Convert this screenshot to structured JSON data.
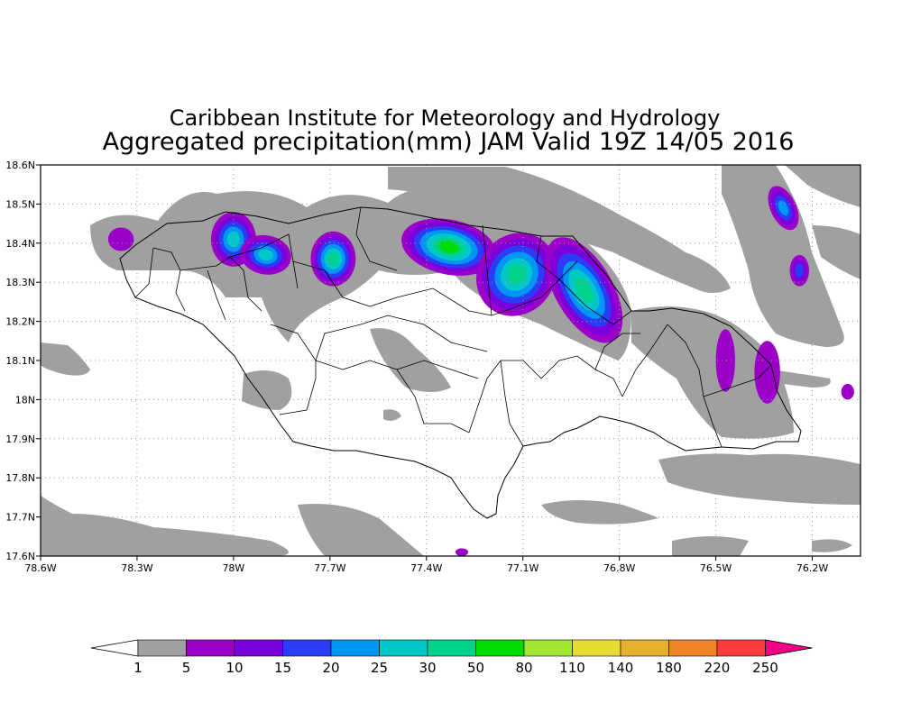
{
  "header": {
    "title_line1": "Caribbean Institute for Meteorology and Hydrology",
    "title_line2": "Aggregated precipitation(mm) JAM Valid 19Z 14/05 2016"
  },
  "chart_data": {
    "type": "heatmap",
    "title": "Caribbean Institute for Meteorology and Hydrology",
    "subtitle": "Aggregated precipitation(mm) JAM Valid 19Z 14/05 2016",
    "x_range": [
      -78.6,
      -76.05
    ],
    "y_range": [
      17.6,
      18.6
    ],
    "x_ticks": [
      {
        "value": -78.6,
        "label": "78.6W"
      },
      {
        "value": -78.3,
        "label": "78.3W"
      },
      {
        "value": -78.0,
        "label": "78W"
      },
      {
        "value": -77.7,
        "label": "77.7W"
      },
      {
        "value": -77.4,
        "label": "77.4W"
      },
      {
        "value": -77.1,
        "label": "77.1W"
      },
      {
        "value": -76.8,
        "label": "76.8W"
      },
      {
        "value": -76.5,
        "label": "76.5W"
      },
      {
        "value": -76.2,
        "label": "76.2W"
      }
    ],
    "y_ticks": [
      {
        "value": 17.6,
        "label": "17.6N"
      },
      {
        "value": 17.7,
        "label": "17.7N"
      },
      {
        "value": 17.8,
        "label": "17.8N"
      },
      {
        "value": 17.9,
        "label": "17.9N"
      },
      {
        "value": 18.0,
        "label": "18N"
      },
      {
        "value": 18.1,
        "label": "18.1N"
      },
      {
        "value": 18.2,
        "label": "18.2N"
      },
      {
        "value": 18.3,
        "label": "18.3N"
      },
      {
        "value": 18.4,
        "label": "18.4N"
      },
      {
        "value": 18.5,
        "label": "18.5N"
      },
      {
        "value": 18.6,
        "label": "18.6N"
      }
    ],
    "grid": true,
    "colorbar": {
      "labels": [
        "1",
        "5",
        "10",
        "15",
        "20",
        "25",
        "30",
        "50",
        "80",
        "110",
        "140",
        "180",
        "220",
        "250"
      ],
      "colors": [
        "#a0a0a0",
        "#9b00c8",
        "#7a00dc",
        "#2a3cf5",
        "#0096f5",
        "#00c8c8",
        "#00d28c",
        "#00dc00",
        "#a0e632",
        "#e6dc32",
        "#e6af2d",
        "#f08228",
        "#fa3c3c",
        "#f00082"
      ],
      "under_color": "#ffffff"
    },
    "precip_cells": [
      {
        "lon": -77.33,
        "lat": 18.39,
        "rx": 0.15,
        "ry": 0.07,
        "rot": 12,
        "value": 50
      },
      {
        "lon": -77.12,
        "lat": 18.32,
        "rx": 0.12,
        "ry": 0.11,
        "rot": 35,
        "value": 30
      },
      {
        "lon": -76.91,
        "lat": 18.28,
        "rx": 0.09,
        "ry": 0.15,
        "rot": -30,
        "value": 30
      },
      {
        "lon": -78.0,
        "lat": 18.41,
        "rx": 0.07,
        "ry": 0.07,
        "rot": 0,
        "value": 25
      },
      {
        "lon": -77.9,
        "lat": 18.37,
        "rx": 0.08,
        "ry": 0.05,
        "rot": 10,
        "value": 25
      },
      {
        "lon": -77.69,
        "lat": 18.36,
        "rx": 0.07,
        "ry": 0.07,
        "rot": 0,
        "value": 30
      },
      {
        "lon": -76.29,
        "lat": 18.49,
        "rx": 0.04,
        "ry": 0.06,
        "rot": -25,
        "value": 20
      },
      {
        "lon": -76.24,
        "lat": 18.33,
        "rx": 0.03,
        "ry": 0.04,
        "rot": 0,
        "value": 15
      },
      {
        "lon": -78.35,
        "lat": 18.41,
        "rx": 0.04,
        "ry": 0.03,
        "rot": 0,
        "value": 5
      },
      {
        "lon": -76.47,
        "lat": 18.1,
        "rx": 0.03,
        "ry": 0.08,
        "rot": 0,
        "value": 5
      },
      {
        "lon": -76.34,
        "lat": 18.07,
        "rx": 0.04,
        "ry": 0.08,
        "rot": 0,
        "value": 5
      },
      {
        "lon": -77.29,
        "lat": 17.61,
        "rx": 0.02,
        "ry": 0.01,
        "rot": 0,
        "value": 5
      },
      {
        "lon": -76.09,
        "lat": 18.02,
        "rx": 0.02,
        "ry": 0.02,
        "rot": 0,
        "value": 5
      }
    ]
  }
}
